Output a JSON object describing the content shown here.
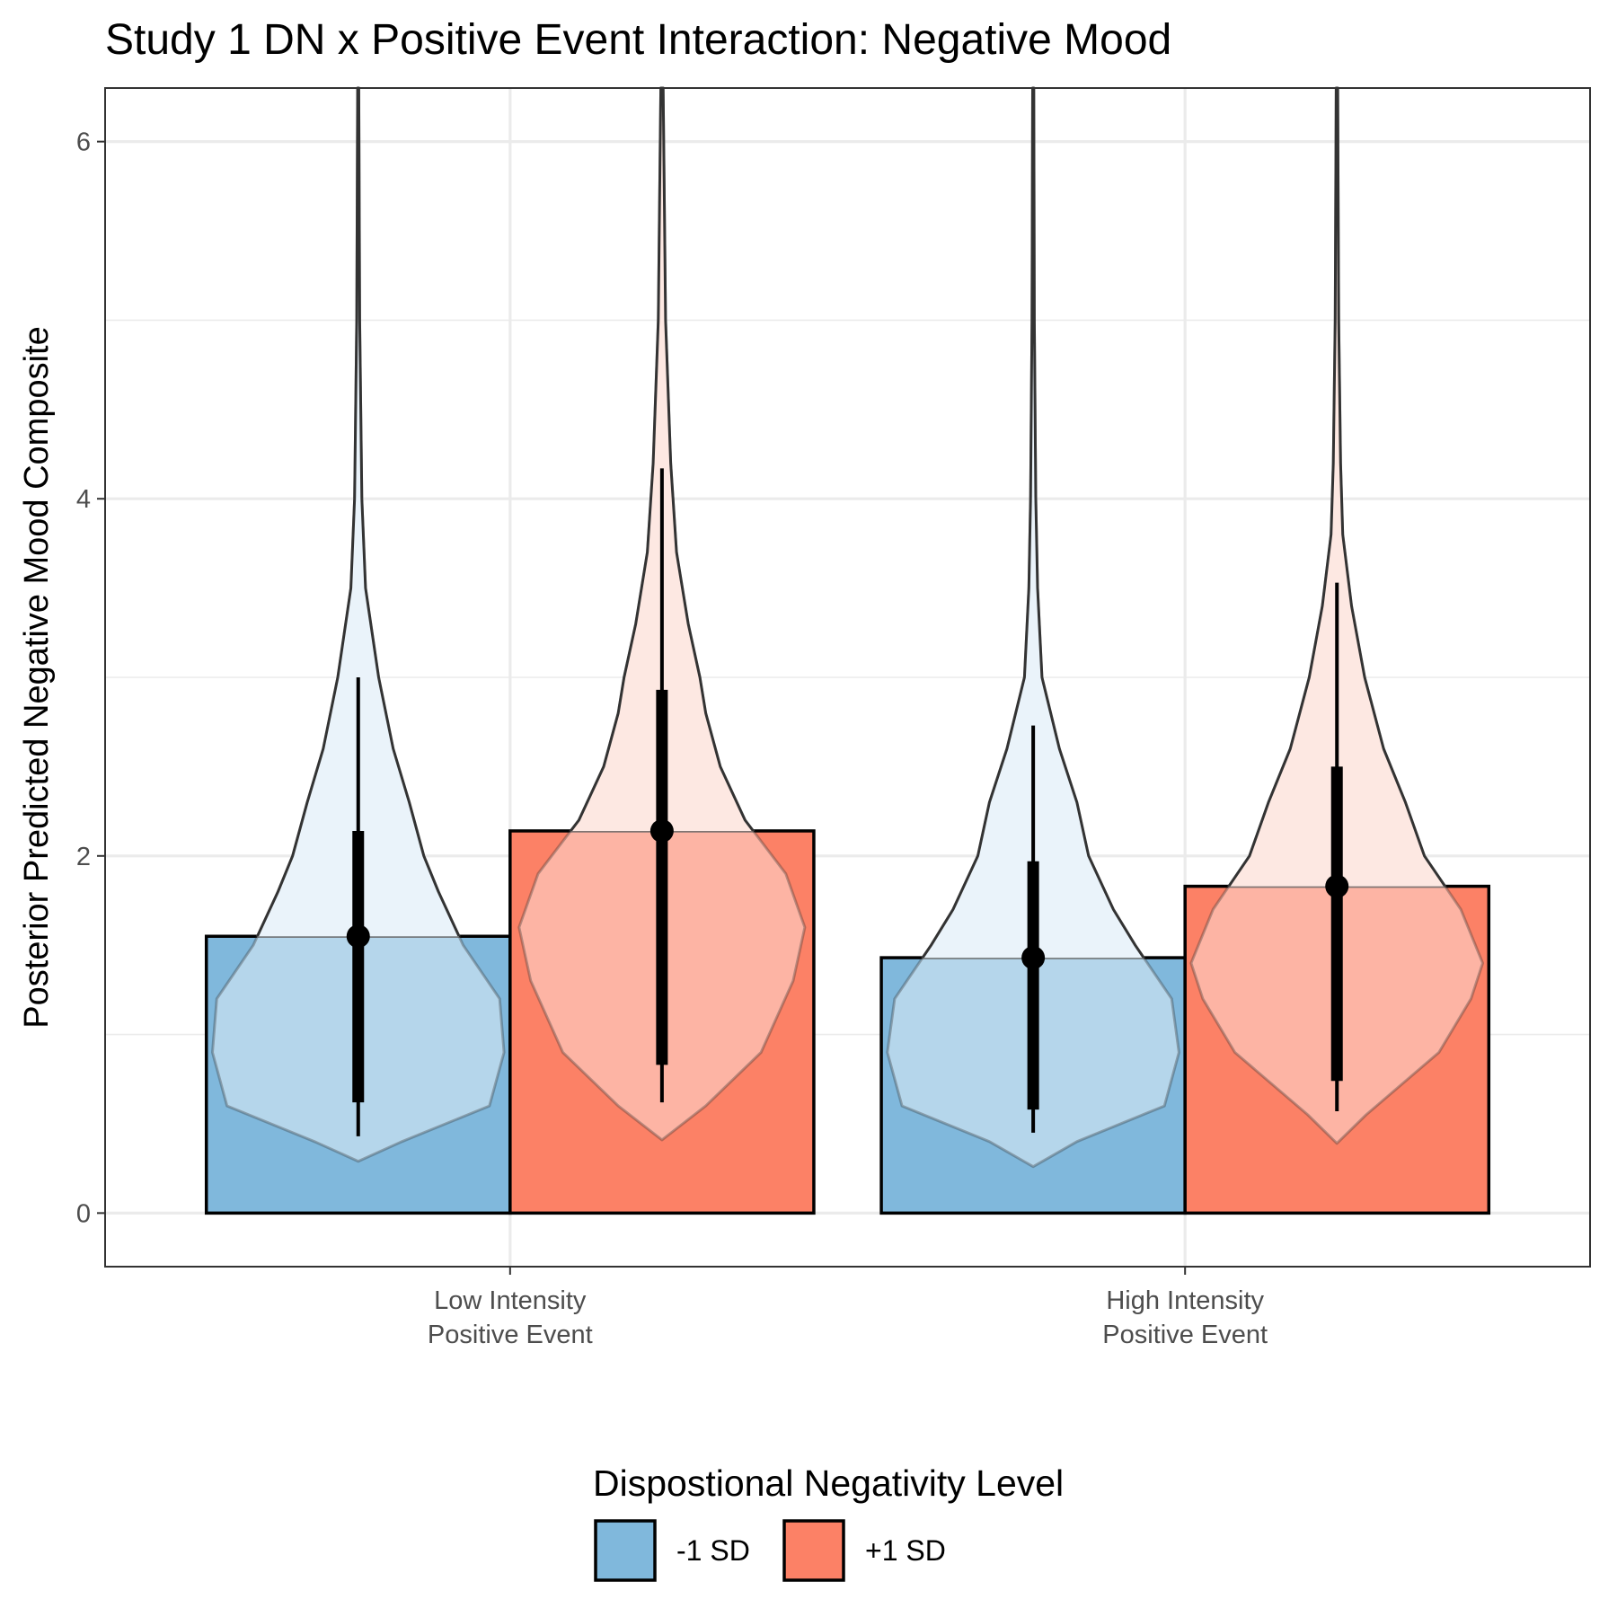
{
  "chart_data": {
    "type": "bar",
    "title": "Study 1 DN x Positive Event Interaction: Negative Mood",
    "xlabel": "",
    "ylabel": "Posterior Predicted Negative Mood Composite",
    "categories": [
      [
        "Low Intensity",
        "Positive Event"
      ],
      [
        "High Intensity",
        "Positive Event"
      ]
    ],
    "yticks": [
      "0",
      "2",
      "4",
      "6"
    ],
    "ylim": [
      -0.3,
      6.3
    ],
    "grid": true,
    "legend": {
      "title": "Dispostional Negativity Level",
      "position": "bottom"
    },
    "series": [
      {
        "name": "-1 SD",
        "color": "#80b8dc",
        "violin_color": "#eaf3fa",
        "values": [
          1.55,
          1.43
        ],
        "interval_66": [
          [
            0.62,
            2.14
          ],
          [
            0.58,
            1.97
          ]
        ],
        "interval_95": [
          [
            0.43,
            3.0
          ],
          [
            0.45,
            2.73
          ]
        ],
        "violin": [
          {
            "min": 0.29,
            "max": 6.3,
            "profile": [
              [
                0.29,
                0.0
              ],
              [
                0.4,
                0.3
              ],
              [
                0.6,
                0.9
              ],
              [
                0.9,
                1.0
              ],
              [
                1.2,
                0.97
              ],
              [
                1.5,
                0.72
              ],
              [
                1.8,
                0.55
              ],
              [
                2.0,
                0.45
              ],
              [
                2.3,
                0.35
              ],
              [
                2.6,
                0.24
              ],
              [
                3.0,
                0.14
              ],
              [
                3.5,
                0.05
              ],
              [
                4.0,
                0.025
              ],
              [
                5.0,
                0.01
              ],
              [
                6.3,
                0.004
              ]
            ]
          },
          {
            "min": 0.26,
            "max": 6.3,
            "profile": [
              [
                0.26,
                0.0
              ],
              [
                0.4,
                0.3
              ],
              [
                0.6,
                0.9
              ],
              [
                0.9,
                1.0
              ],
              [
                1.2,
                0.95
              ],
              [
                1.5,
                0.7
              ],
              [
                1.7,
                0.55
              ],
              [
                2.0,
                0.38
              ],
              [
                2.3,
                0.3
              ],
              [
                2.6,
                0.18
              ],
              [
                3.0,
                0.06
              ],
              [
                3.5,
                0.03
              ],
              [
                4.0,
                0.018
              ],
              [
                5.0,
                0.008
              ],
              [
                6.3,
                0.004
              ]
            ]
          }
        ]
      },
      {
        "name": "+1 SD",
        "color": "#fc8166",
        "violin_color": "#fde8e2",
        "values": [
          2.14,
          1.83
        ],
        "interval_66": [
          [
            0.83,
            2.93
          ],
          [
            0.74,
            2.5
          ]
        ],
        "interval_95": [
          [
            0.62,
            4.17
          ],
          [
            0.57,
            3.53
          ]
        ],
        "violin": [
          {
            "min": 0.41,
            "max": 6.3,
            "profile": [
              [
                0.41,
                0.0
              ],
              [
                0.6,
                0.3
              ],
              [
                0.9,
                0.68
              ],
              [
                1.3,
                0.9
              ],
              [
                1.6,
                0.98
              ],
              [
                1.9,
                0.85
              ],
              [
                2.2,
                0.57
              ],
              [
                2.5,
                0.4
              ],
              [
                2.8,
                0.3
              ],
              [
                3.0,
                0.26
              ],
              [
                3.3,
                0.18
              ],
              [
                3.7,
                0.1
              ],
              [
                4.2,
                0.06
              ],
              [
                5.0,
                0.025
              ],
              [
                6.3,
                0.008
              ]
            ]
          },
          {
            "min": 0.39,
            "max": 6.3,
            "profile": [
              [
                0.39,
                0.0
              ],
              [
                0.55,
                0.2
              ],
              [
                0.9,
                0.7
              ],
              [
                1.2,
                0.92
              ],
              [
                1.4,
                1.0
              ],
              [
                1.7,
                0.85
              ],
              [
                2.0,
                0.6
              ],
              [
                2.3,
                0.47
              ],
              [
                2.6,
                0.32
              ],
              [
                3.0,
                0.19
              ],
              [
                3.4,
                0.1
              ],
              [
                3.8,
                0.04
              ],
              [
                4.2,
                0.025
              ],
              [
                5.0,
                0.012
              ],
              [
                6.3,
                0.005
              ]
            ]
          }
        ]
      }
    ]
  }
}
